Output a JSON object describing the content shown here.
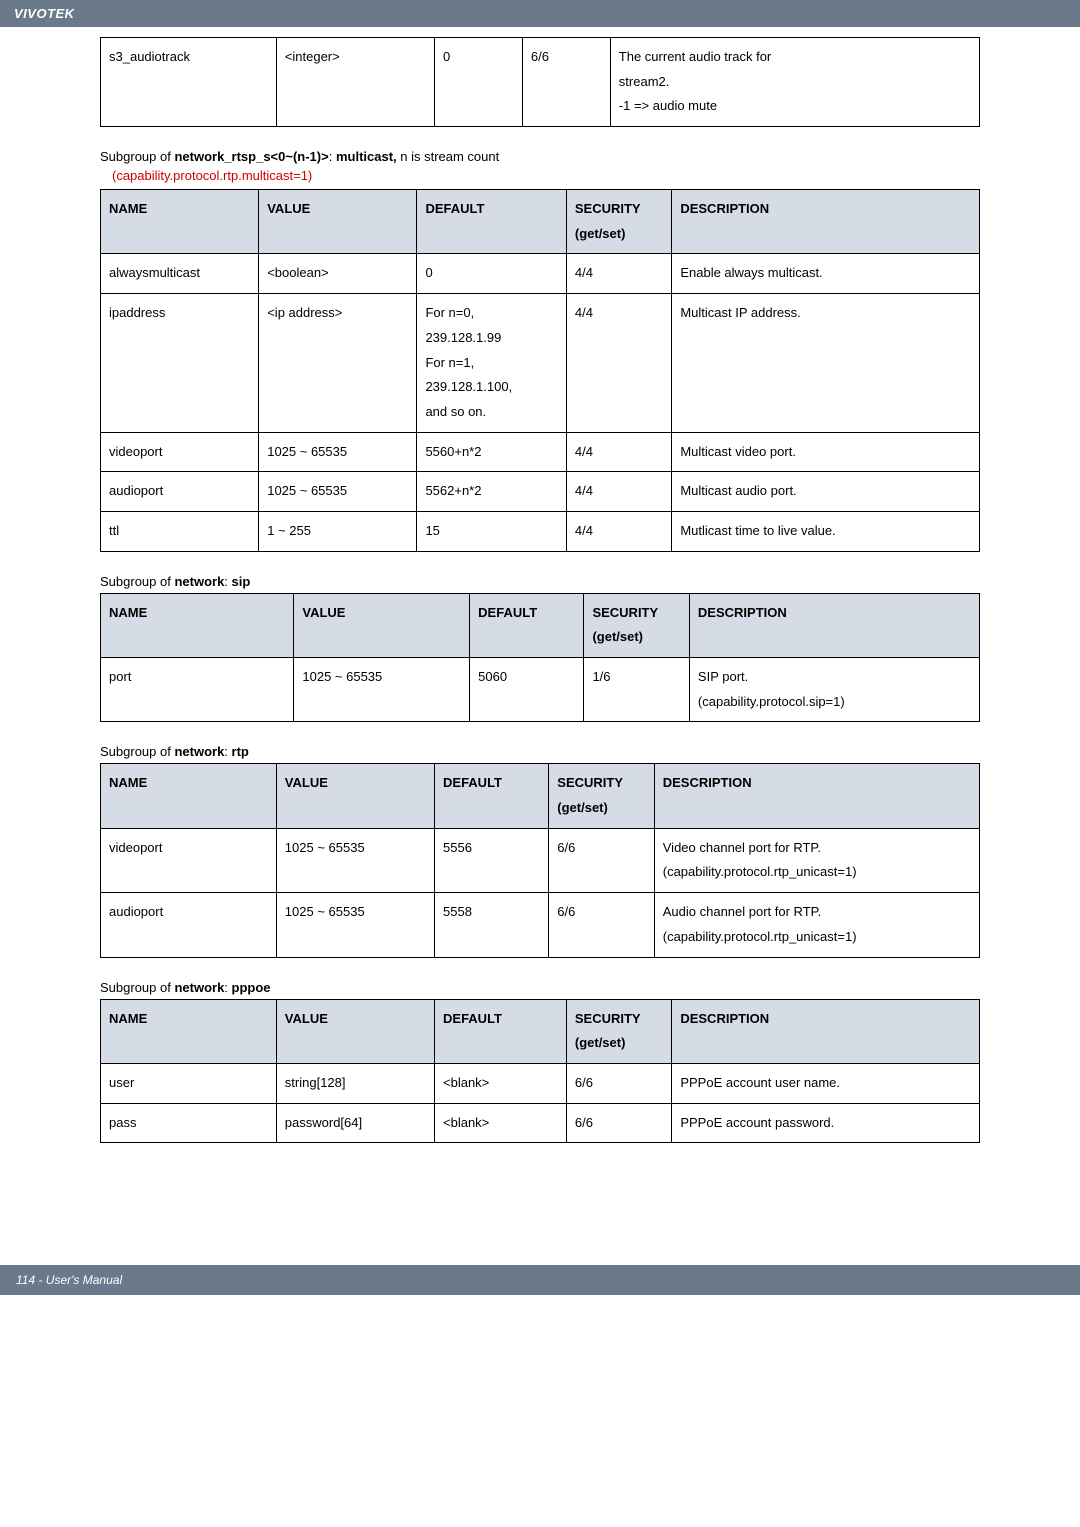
{
  "brand": "VIVOTEK",
  "footer": "114 - User's Manual",
  "table0": {
    "rows": [
      {
        "name": "s3_audiotrack",
        "value": "<integer>",
        "default": "0",
        "security": "6/6",
        "desc": "The current audio track for\n  stream2.\n-1 => audio mute"
      }
    ]
  },
  "sub_multicast": {
    "title_pre": "Subgroup of ",
    "title_bold1": "network_rtsp_s<0~(n-1)>",
    "title_mid": ": ",
    "title_bold2": "multicast,",
    "title_post": " n is stream count",
    "cap_note": "(capability.protocol.rtp.multicast=1)"
  },
  "headers": {
    "name": "NAME",
    "value": "VALUE",
    "default": "DEFAULT",
    "security": "SECURITY\n(get/set)",
    "desc": "DESCRIPTION"
  },
  "table1": {
    "rows": [
      {
        "name": "alwaysmulticast",
        "value": "<boolean>",
        "default": "0",
        "security": "4/4",
        "desc": "Enable always multicast."
      },
      {
        "name": "ipaddress",
        "value": "<ip address>",
        "default": "For n=0,\n  239.128.1.99\nFor n=1,\n239.128.1.100,\nand so on.",
        "security": "4/4",
        "desc": "Multicast IP address."
      },
      {
        "name": "videoport",
        "value": "1025 ~ 65535",
        "default": "5560+n*2",
        "security": "4/4",
        "desc": "Multicast video port."
      },
      {
        "name": "audioport",
        "value": "1025 ~ 65535",
        "default": "5562+n*2",
        "security": "4/4",
        "desc": "Multicast audio port."
      },
      {
        "name": "ttl",
        "value": "1 ~ 255",
        "default": "15",
        "security": "4/4",
        "desc": "Mutlicast time to live value."
      }
    ]
  },
  "sub_sip": {
    "title_pre": "Subgroup of ",
    "title_bold1": "network",
    "title_mid": ": ",
    "title_bold2": "sip",
    "title_post": ""
  },
  "table2": {
    "rows": [
      {
        "name": "port",
        "value": "1025 ~ 65535",
        "default": "5060",
        "security": "1/6",
        "desc": "SIP port.\n(capability.protocol.sip=1)"
      }
    ]
  },
  "sub_rtp": {
    "title_pre": "Subgroup of ",
    "title_bold1": "network",
    "title_mid": ": ",
    "title_bold2": "rtp",
    "title_post": ""
  },
  "table3": {
    "rows": [
      {
        "name": "videoport",
        "value": "1025 ~ 65535",
        "default": "5556",
        "security": "6/6",
        "desc": "Video channel port for RTP.\n(capability.protocol.rtp_unicast=1)"
      },
      {
        "name": "audioport",
        "value": "1025 ~ 65535",
        "default": "5558",
        "security": "6/6",
        "desc": "Audio channel port for RTP.\n(capability.protocol.rtp_unicast=1)"
      }
    ]
  },
  "sub_pppoe": {
    "title_pre": "Subgroup of ",
    "title_bold1": "network",
    "title_mid": ": ",
    "title_bold2": "pppoe",
    "title_post": ""
  },
  "table4": {
    "rows": [
      {
        "name": "user",
        "value": "string[128]",
        "default": "<blank>",
        "security": "6/6",
        "desc": "PPPoE account user name."
      },
      {
        "name": "pass",
        "value": "password[64]",
        "default": "<blank>",
        "security": "6/6",
        "desc": "PPPoE account password."
      }
    ]
  },
  "colors": {
    "header_bg": "#d6dce5",
    "brand_bg": "#6a7a8a",
    "cap_note": "#cc0000",
    "border": "#000000",
    "text": "#000000"
  }
}
